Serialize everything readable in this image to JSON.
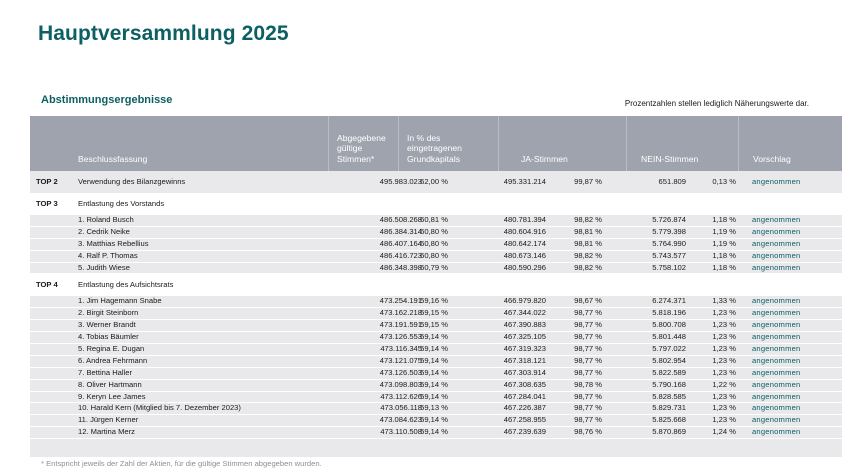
{
  "title": "Hauptversammlung 2025",
  "section": "Abstimmungsergebnisse",
  "note": "Prozentzahlen stellen lediglich Näherungswerte dar.",
  "header": {
    "beschluss": "Beschlussfassung",
    "abgegebene": [
      "Abgegebene",
      "gültige",
      "Stimmen*"
    ],
    "prozent": [
      "In % des",
      "eingetragenen",
      "Grundkapitals"
    ],
    "ja": "JA-Stimmen",
    "nein": "NEIN-Stimmen",
    "vorschlag": "Vorschlag"
  },
  "top2": {
    "label": "TOP 2",
    "desc": "Verwendung des Bilanzgewinns",
    "abg": "495.983.023",
    "pct": "62,00 %",
    "ja": "495.331.214",
    "japct": "99,87 %",
    "nein": "651.809",
    "neinpct": "0,13 %",
    "res": "angenommen"
  },
  "top3": {
    "label": "TOP 3",
    "desc": "Entlastung des Vorstands",
    "rows": [
      {
        "desc": "1.   Roland Busch",
        "abg": "486.508.268",
        "pct": "60,81 %",
        "ja": "480.781.394",
        "japct": "98,82 %",
        "nein": "5.726.874",
        "neinpct": "1,18 %",
        "res": "angenommen"
      },
      {
        "desc": "2.   Cedrik Neike",
        "abg": "486.384.314",
        "pct": "60,80 %",
        "ja": "480.604.916",
        "japct": "98,81 %",
        "nein": "5.779.398",
        "neinpct": "1,19 %",
        "res": "angenommen"
      },
      {
        "desc": "3.   Matthias Rebellius",
        "abg": "486.407.164",
        "pct": "60,80 %",
        "ja": "480.642.174",
        "japct": "98,81 %",
        "nein": "5.764.990",
        "neinpct": "1,19 %",
        "res": "angenommen"
      },
      {
        "desc": "4.   Ralf P. Thomas",
        "abg": "486.416.723",
        "pct": "60,80 %",
        "ja": "480.673.146",
        "japct": "98,82 %",
        "nein": "5.743.577",
        "neinpct": "1,18 %",
        "res": "angenommen"
      },
      {
        "desc": "5.   Judith Wiese",
        "abg": "486.348.398",
        "pct": "60,79 %",
        "ja": "480.590.296",
        "japct": "98,82 %",
        "nein": "5.758.102",
        "neinpct": "1,18 %",
        "res": "angenommen"
      }
    ]
  },
  "top4": {
    "label": "TOP 4",
    "desc": "Entlastung des Aufsichtsrats",
    "rows": [
      {
        "desc": "1.   Jim Hagemann Snabe",
        "abg": "473.254.191",
        "pct": "59,16 %",
        "ja": "466.979.820",
        "japct": "98,67 %",
        "nein": "6.274.371",
        "neinpct": "1,33 %",
        "res": "angenommen"
      },
      {
        "desc": "2.   Birgit Steinborn",
        "abg": "473.162.218",
        "pct": "59,15 %",
        "ja": "467.344.022",
        "japct": "98,77 %",
        "nein": "5.818.196",
        "neinpct": "1,23 %",
        "res": "angenommen"
      },
      {
        "desc": "3.   Werner Brandt",
        "abg": "473.191.591",
        "pct": "59,15 %",
        "ja": "467.390.883",
        "japct": "98,77 %",
        "nein": "5.800.708",
        "neinpct": "1,23 %",
        "res": "angenommen"
      },
      {
        "desc": "4.   Tobias Bäumler",
        "abg": "473.126.553",
        "pct": "59,14 %",
        "ja": "467.325.105",
        "japct": "98,77 %",
        "nein": "5.801.448",
        "neinpct": "1,23 %",
        "res": "angenommen"
      },
      {
        "desc": "5.   Regina E. Dugan",
        "abg": "473.116.345",
        "pct": "59,14 %",
        "ja": "467.319.323",
        "japct": "98,77 %",
        "nein": "5.797.022",
        "neinpct": "1,23 %",
        "res": "angenommen"
      },
      {
        "desc": "6.   Andrea Fehrmann",
        "abg": "473.121.075",
        "pct": "59,14 %",
        "ja": "467.318.121",
        "japct": "98,77 %",
        "nein": "5.802.954",
        "neinpct": "1,23 %",
        "res": "angenommen"
      },
      {
        "desc": "7.   Bettina Haller",
        "abg": "473.126.503",
        "pct": "59,14 %",
        "ja": "467.303.914",
        "japct": "98,77 %",
        "nein": "5.822.589",
        "neinpct": "1,23 %",
        "res": "angenommen"
      },
      {
        "desc": "8.   Oliver Hartmann",
        "abg": "473.098.803",
        "pct": "59,14 %",
        "ja": "467.308.635",
        "japct": "98,78 %",
        "nein": "5.790.168",
        "neinpct": "1,22 %",
        "res": "angenommen"
      },
      {
        "desc": "9.   Keryn Lee James",
        "abg": "473.112.626",
        "pct": "59,14 %",
        "ja": "467.284.041",
        "japct": "98,77 %",
        "nein": "5.828.585",
        "neinpct": "1,23 %",
        "res": "angenommen"
      },
      {
        "desc": "10. Harald Kern (Mitglied bis 7. Dezember 2023)",
        "abg": "473.056.118",
        "pct": "59,13 %",
        "ja": "467.226.387",
        "japct": "98,77 %",
        "nein": "5.829.731",
        "neinpct": "1,23 %",
        "res": "angenommen"
      },
      {
        "desc": "11. Jürgen Kerner",
        "abg": "473.084.623",
        "pct": "59,14 %",
        "ja": "467.258.955",
        "japct": "98,77 %",
        "nein": "5.825.668",
        "neinpct": "1,23 %",
        "res": "angenommen"
      },
      {
        "desc": "12. Martina Merz",
        "abg": "473.110.508",
        "pct": "59,14 %",
        "ja": "467.239.639",
        "japct": "98,76 %",
        "nein": "5.870.869",
        "neinpct": "1,24 %",
        "res": "angenommen"
      }
    ]
  },
  "footnote": "* Entspricht jeweils der Zahl der Aktien, für die gültige Stimmen abgegeben wurden.",
  "colors": {
    "accent": "#0c5f62",
    "header_bg": "#9ea3ad",
    "row_shade": "#e9e9ec"
  }
}
